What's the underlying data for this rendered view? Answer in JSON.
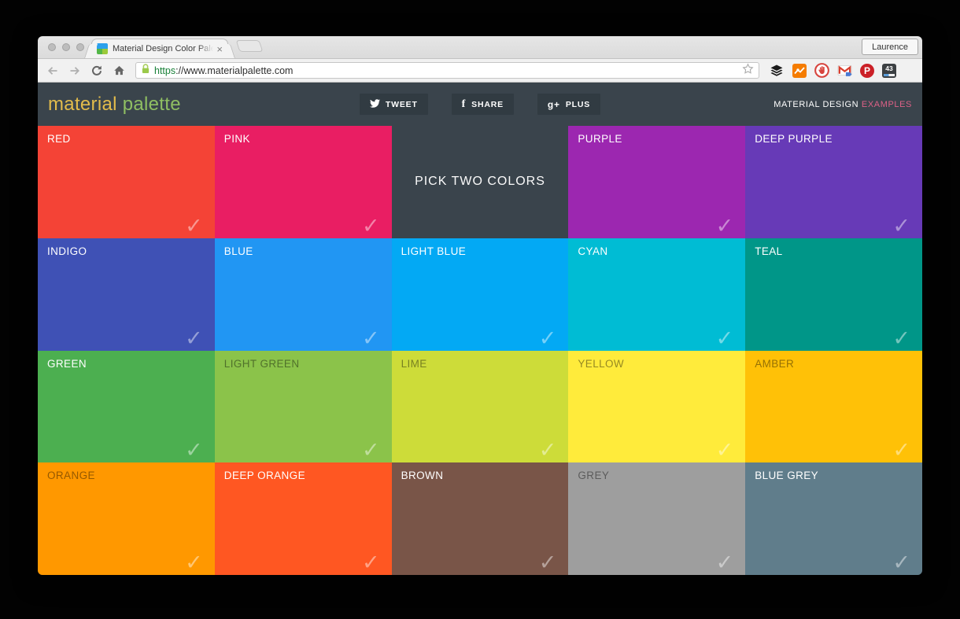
{
  "browser": {
    "tab_title": "Material Design Color Pale",
    "tab_close": "×",
    "profile_button": "Laurence",
    "url_scheme": "https",
    "url_rest": "://www.materialpalette.com",
    "extension_badge_count": "43",
    "pinterest_glyph": "P"
  },
  "header": {
    "logo_first": "material ",
    "logo_second": "palette",
    "buttons": [
      {
        "label": "TWEET",
        "icon": "twitter-icon"
      },
      {
        "label": "SHARE",
        "icon": "facebook-icon",
        "glyph": "f"
      },
      {
        "label": "PLUS",
        "icon": "googleplus-icon",
        "glyph": "g+"
      }
    ],
    "right_text": "MATERIAL DESIGN ",
    "right_link": "EXAMPLES"
  },
  "palette": {
    "pick_prompt": "PICK TWO COLORS",
    "pick_bg": "#3A444C",
    "checkmark": "✓",
    "cells": [
      {
        "name": "RED",
        "color": "#F44336",
        "label_style": "light",
        "checked": true
      },
      {
        "name": "PINK",
        "color": "#E91E63",
        "label_style": "light",
        "checked": true
      },
      {
        "type": "pick"
      },
      {
        "name": "PURPLE",
        "color": "#9C27B0",
        "label_style": "light",
        "checked": true
      },
      {
        "name": "DEEP PURPLE",
        "color": "#673AB7",
        "label_style": "light",
        "checked": true
      },
      {
        "name": "INDIGO",
        "color": "#3F51B5",
        "label_style": "light",
        "checked": true
      },
      {
        "name": "BLUE",
        "color": "#2196F3",
        "label_style": "light",
        "checked": true
      },
      {
        "name": "LIGHT BLUE",
        "color": "#03A9F4",
        "label_style": "light",
        "checked": true
      },
      {
        "name": "CYAN",
        "color": "#00BCD4",
        "label_style": "light",
        "checked": true
      },
      {
        "name": "TEAL",
        "color": "#009688",
        "label_style": "light",
        "checked": true
      },
      {
        "name": "GREEN",
        "color": "#4CAF50",
        "label_style": "light",
        "checked": true
      },
      {
        "name": "LIGHT GREEN",
        "color": "#8BC34A",
        "label_style": "dark",
        "checked": true
      },
      {
        "name": "LIME",
        "color": "#CDDC39",
        "label_style": "dark",
        "checked": true
      },
      {
        "name": "YELLOW",
        "color": "#FFEB3B",
        "label_style": "dark",
        "checked": true
      },
      {
        "name": "AMBER",
        "color": "#FFC107",
        "label_style": "dark",
        "checked": true
      },
      {
        "name": "ORANGE",
        "color": "#FF9800",
        "label_style": "dark",
        "checked": true
      },
      {
        "name": "DEEP ORANGE",
        "color": "#FF5722",
        "label_style": "light",
        "checked": true
      },
      {
        "name": "BROWN",
        "color": "#795548",
        "label_style": "light",
        "checked": true
      },
      {
        "name": "GREY",
        "color": "#9E9E9E",
        "label_style": "dark",
        "checked": true
      },
      {
        "name": "BLUE GREY",
        "color": "#607D8B",
        "label_style": "light",
        "checked": true
      }
    ]
  },
  "colors": {
    "header_bg": "#3A444C",
    "share_button_bg": "#313B42",
    "accent_pink": "#DD6187",
    "logo_yellow": "#E3BC4B",
    "logo_green": "#8FBE62"
  }
}
